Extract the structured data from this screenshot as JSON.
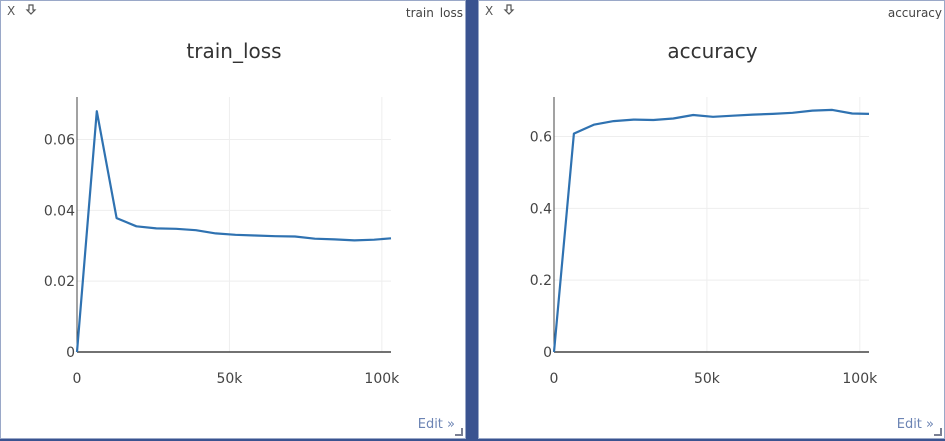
{
  "panes": [
    {
      "close_label": "X",
      "tab_title": "train_loss",
      "edit_label": "Edit »",
      "arrow_icon": "download-arrow-icon"
    },
    {
      "close_label": "X",
      "tab_title": "accuracy",
      "edit_label": "Edit »",
      "arrow_icon": "download-arrow-icon"
    }
  ],
  "chart_data": [
    {
      "type": "line",
      "title": "train_loss",
      "xlabel": "",
      "ylabel": "",
      "xlim": [
        0,
        103000
      ],
      "ylim": [
        0,
        0.072
      ],
      "x_ticks": [
        0,
        50000,
        100000
      ],
      "x_tick_labels": [
        "0",
        "50k",
        "100k"
      ],
      "y_ticks": [
        0,
        0.02,
        0.04,
        0.06
      ],
      "y_tick_labels": [
        "0",
        "0.02",
        "0.04",
        "0.06"
      ],
      "grid": true,
      "line_color": "#2f72b1",
      "series": [
        {
          "x": [
            0,
            6500,
            13000,
            19500,
            26000,
            32500,
            39000,
            45500,
            52000,
            58500,
            65000,
            71500,
            78000,
            84500,
            91000,
            97500,
            103000
          ],
          "y": [
            0,
            0.068,
            0.0378,
            0.0355,
            0.0349,
            0.0348,
            0.0344,
            0.0335,
            0.0331,
            0.0329,
            0.0327,
            0.0326,
            0.032,
            0.0318,
            0.0315,
            0.0317,
            0.0321
          ]
        }
      ]
    },
    {
      "type": "line",
      "title": "accuracy",
      "xlabel": "",
      "ylabel": "",
      "xlim": [
        0,
        103000
      ],
      "ylim": [
        0,
        0.71
      ],
      "x_ticks": [
        0,
        50000,
        100000
      ],
      "x_tick_labels": [
        "0",
        "50k",
        "100k"
      ],
      "y_ticks": [
        0,
        0.2,
        0.4,
        0.6
      ],
      "y_tick_labels": [
        "0",
        "0.2",
        "0.4",
        "0.6"
      ],
      "grid": true,
      "line_color": "#2f72b1",
      "series": [
        {
          "x": [
            0,
            6500,
            13000,
            19500,
            26000,
            32500,
            39000,
            45500,
            52000,
            58500,
            65000,
            71500,
            78000,
            84500,
            91000,
            97500,
            103000
          ],
          "y": [
            0,
            0.608,
            0.633,
            0.643,
            0.647,
            0.646,
            0.65,
            0.66,
            0.655,
            0.658,
            0.661,
            0.663,
            0.666,
            0.672,
            0.674,
            0.664,
            0.663
          ]
        }
      ]
    }
  ]
}
